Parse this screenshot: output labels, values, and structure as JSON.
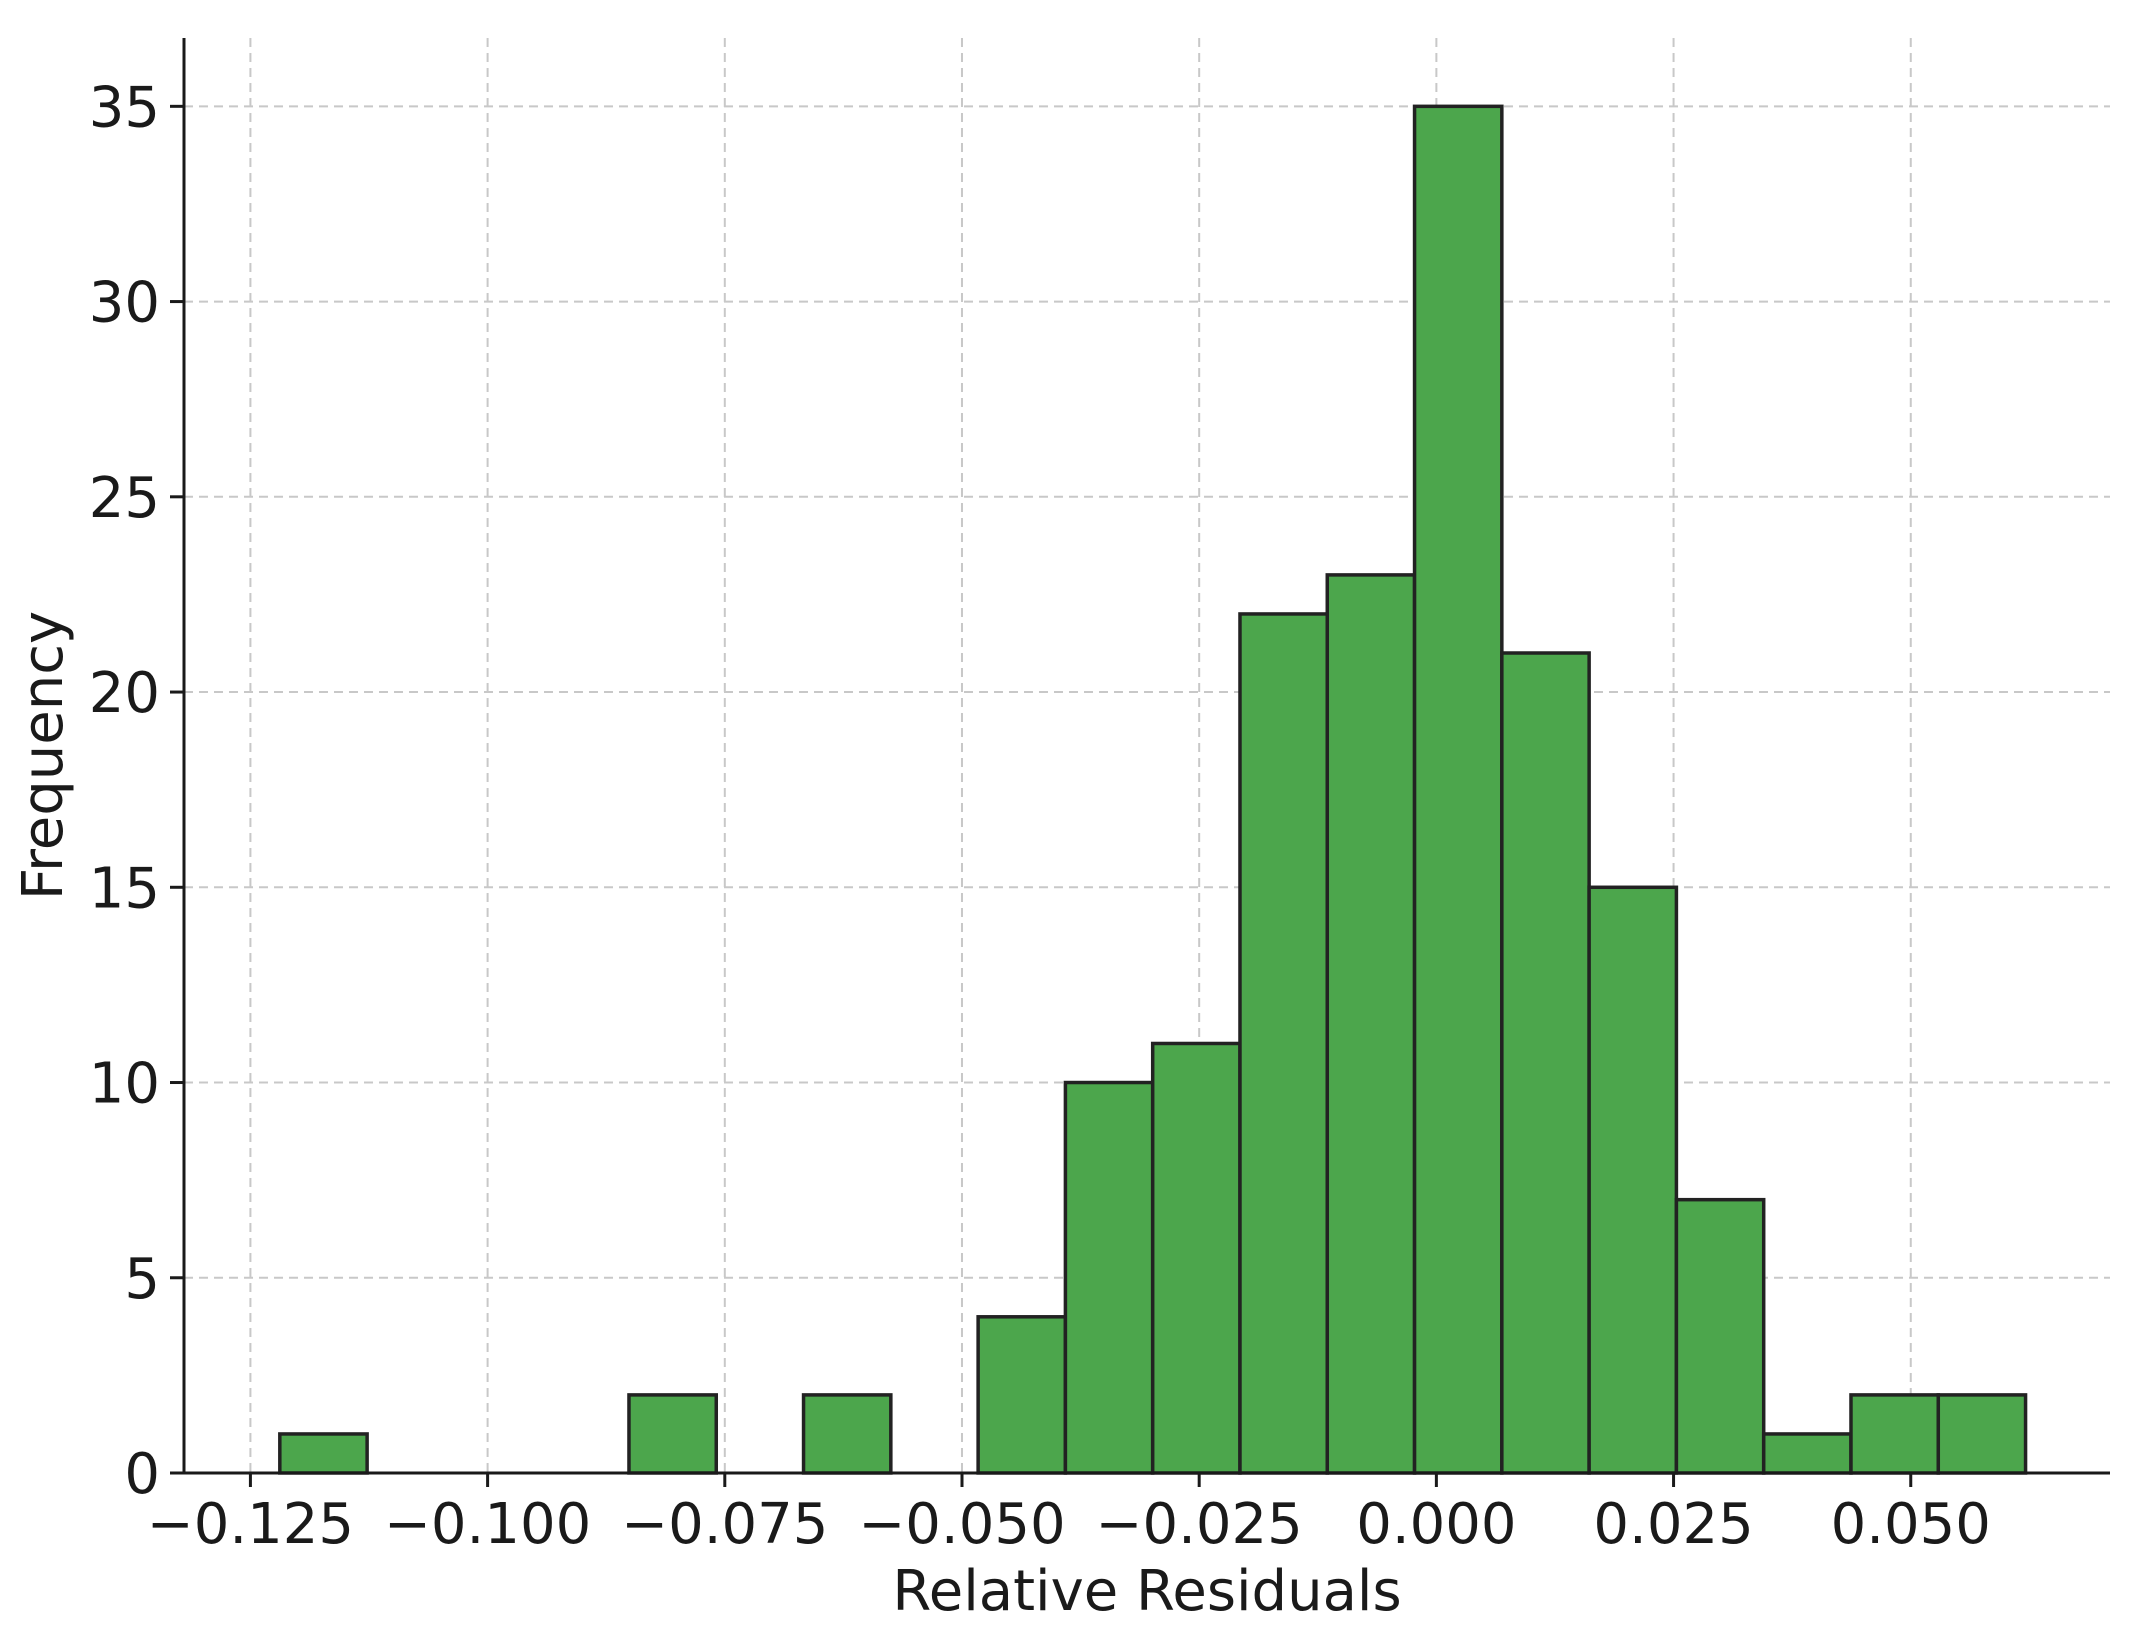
{
  "chart_data": {
    "type": "bar",
    "subtype": "histogram",
    "title": "",
    "xlabel": "Relative Residuals",
    "ylabel": "Frequency",
    "xlim": [
      -0.132,
      0.071
    ],
    "ylim": [
      0,
      36.75
    ],
    "xticks": [
      -0.125,
      -0.1,
      -0.075,
      -0.05,
      -0.025,
      0.0,
      0.025,
      0.05
    ],
    "xtick_labels": [
      "−0.125",
      "−0.100",
      "−0.075",
      "−0.050",
      "−0.025",
      "0.000",
      "0.025",
      "0.050"
    ],
    "yticks": [
      0,
      5,
      10,
      15,
      20,
      25,
      30,
      35
    ],
    "ytick_labels": [
      "0",
      "5",
      "10",
      "15",
      "20",
      "25",
      "30",
      "35"
    ],
    "grid": true,
    "bar_color": "#4ca64c",
    "edge_color": "#222222",
    "bins": [
      {
        "x0": -0.1219,
        "x1": -0.1127,
        "count": 1
      },
      {
        "x0": -0.1127,
        "x1": -0.1035,
        "count": 0
      },
      {
        "x0": -0.1035,
        "x1": -0.0943,
        "count": 0
      },
      {
        "x0": -0.0943,
        "x1": -0.0851,
        "count": 0
      },
      {
        "x0": -0.0851,
        "x1": -0.0759,
        "count": 2
      },
      {
        "x0": -0.0759,
        "x1": -0.0667,
        "count": 0
      },
      {
        "x0": -0.0667,
        "x1": -0.0575,
        "count": 2
      },
      {
        "x0": -0.0575,
        "x1": -0.0483,
        "count": 0
      },
      {
        "x0": -0.0483,
        "x1": -0.0391,
        "count": 4
      },
      {
        "x0": -0.0391,
        "x1": -0.0299,
        "count": 10
      },
      {
        "x0": -0.0299,
        "x1": -0.0207,
        "count": 11
      },
      {
        "x0": -0.0207,
        "x1": -0.0115,
        "count": 22
      },
      {
        "x0": -0.0115,
        "x1": -0.0023,
        "count": 23
      },
      {
        "x0": -0.0023,
        "x1": 0.0069,
        "count": 35
      },
      {
        "x0": 0.0069,
        "x1": 0.0161,
        "count": 21
      },
      {
        "x0": 0.0161,
        "x1": 0.0253,
        "count": 15
      },
      {
        "x0": 0.0253,
        "x1": 0.0345,
        "count": 7
      },
      {
        "x0": 0.0345,
        "x1": 0.0437,
        "count": 1
      },
      {
        "x0": 0.0437,
        "x1": 0.0529,
        "count": 2
      },
      {
        "x0": 0.0529,
        "x1": 0.0621,
        "count": 2
      }
    ]
  }
}
